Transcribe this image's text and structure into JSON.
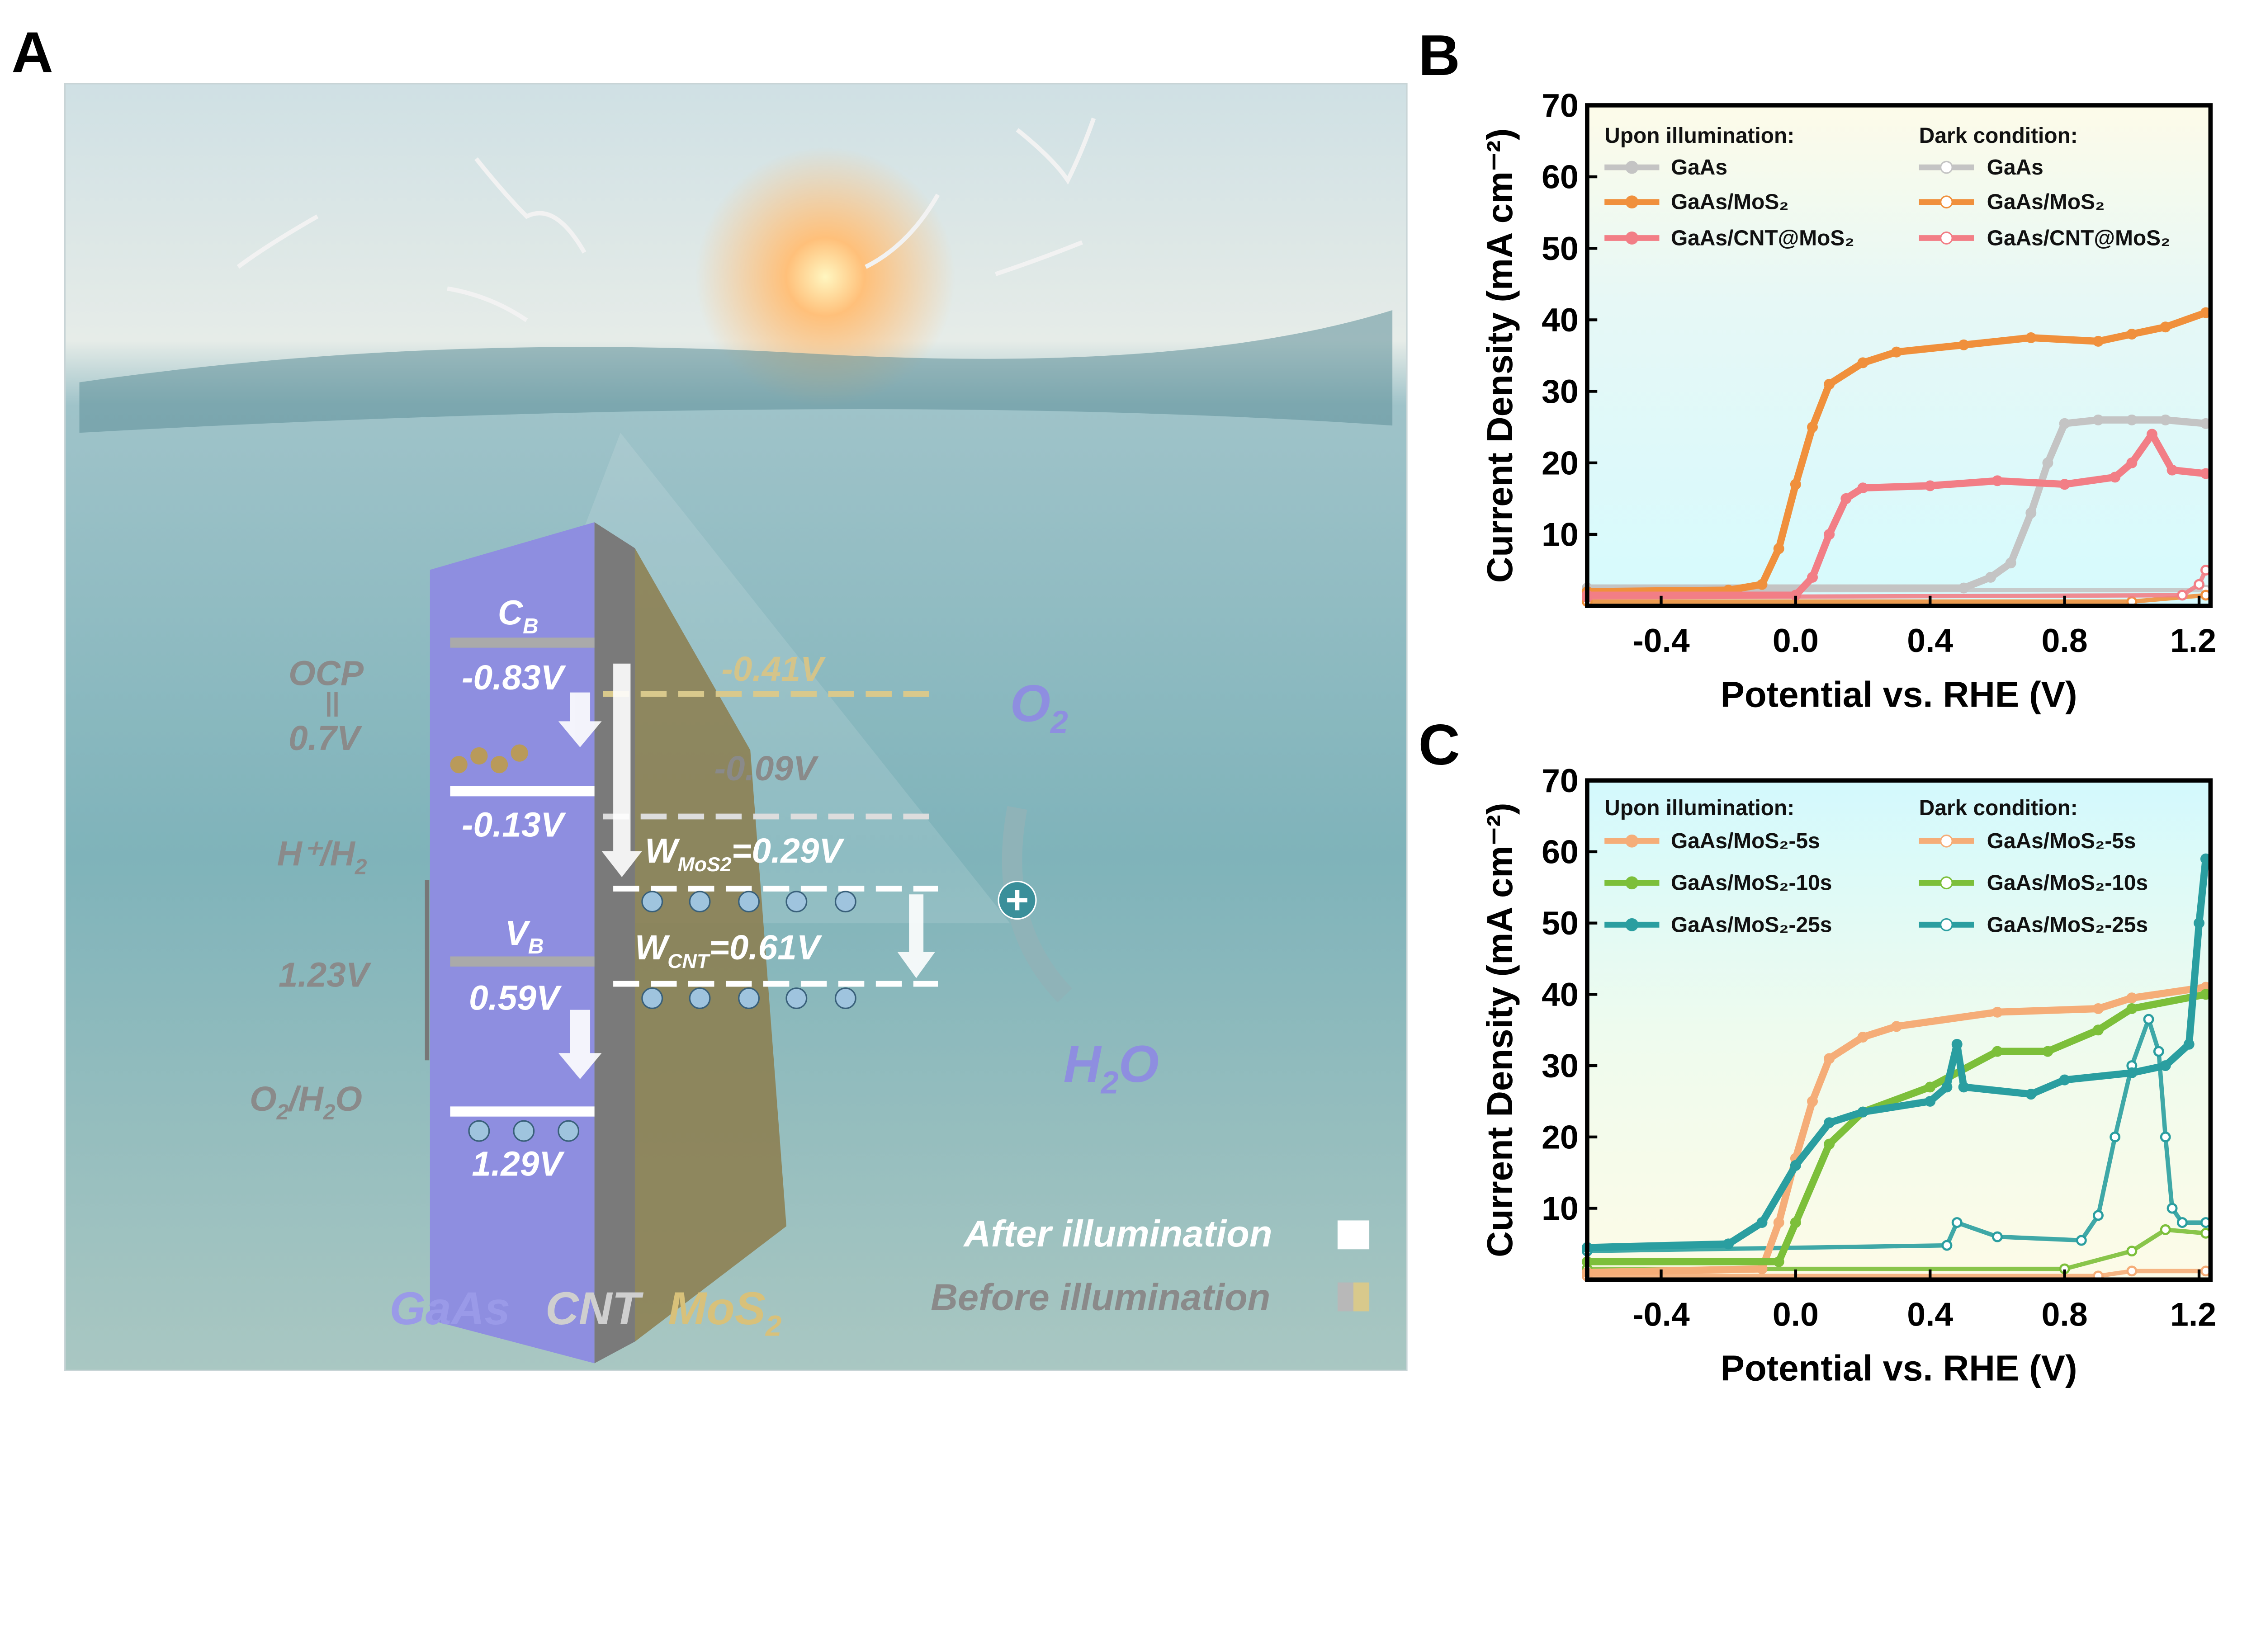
{
  "panel_labels": {
    "a": "A",
    "b": "B",
    "c": "C"
  },
  "panel_a": {
    "cb": {
      "main": "C",
      "sub": "B"
    },
    "vb": {
      "main": "V",
      "sub": "B"
    },
    "cb_after": "-0.83V",
    "cb_before": "-0.13V",
    "vb_before": "0.59V",
    "vb_after": "1.29V",
    "ocp": "OCP",
    "ocp_eq": "||",
    "ocp_value": "0.7V",
    "h_couple": {
      "main": "H⁺/H",
      "sub": "2"
    },
    "gap": "1.23V",
    "o_couple": {
      "pre": "O",
      "sub": "2",
      "post": "/H",
      "sub2": "2",
      "end": "O"
    },
    "mos2_level": "-0.41V",
    "cnt_level": "-0.09V",
    "w_mos2": {
      "main": "W",
      "sub": "MoS2",
      "post": "=0.29V"
    },
    "w_cnt": {
      "main": "W",
      "sub": "CNT",
      "post": "=0.61V"
    },
    "o2": {
      "main": "O",
      "sub": "2"
    },
    "h2o": {
      "main": "H",
      "sub": "2",
      "post": "O"
    },
    "legend_after": "After illumination",
    "legend_before": "Before illumination",
    "material_gaas": "GaAs",
    "material_cnt": "CNT",
    "material_mos2": {
      "main": "MoS",
      "sub": "2"
    },
    "colors": {
      "gaas": "#8e8ee0",
      "cnt": "#8a8a8a",
      "mos2": "#c9b46a",
      "after": "#ffffff",
      "before": "#c8bc8a"
    }
  },
  "chart_data": [
    {
      "panel": "B",
      "type": "line",
      "xlabel": "Potential vs. RHE (V)",
      "ylabel": "Current Density (mA cm⁻²)",
      "xlim": [
        -0.62,
        1.234
      ],
      "ylim": [
        0,
        70
      ],
      "xticks": [
        "-0.4",
        "0.0",
        "0.4",
        "0.8",
        "1.2"
      ],
      "yticks": [
        "10",
        "20",
        "30",
        "40",
        "50",
        "60",
        "70"
      ],
      "grid": false,
      "legend_titles": [
        "Upon illumination:",
        "Dark condition:"
      ],
      "series": [
        {
          "name": "GaAs",
          "group": "Upon illumination",
          "color": "#c4c4c4",
          "points": [
            [
              -0.62,
              2.5
            ],
            [
              0.5,
              2.5
            ],
            [
              0.58,
              4
            ],
            [
              0.64,
              6
            ],
            [
              0.7,
              13
            ],
            [
              0.75,
              20
            ],
            [
              0.8,
              25.5
            ],
            [
              0.9,
              26
            ],
            [
              1.0,
              26
            ],
            [
              1.1,
              26
            ],
            [
              1.22,
              25.5
            ]
          ]
        },
        {
          "name": "GaAs/MoS₂",
          "group": "Upon illumination",
          "color": "#f0903c",
          "points": [
            [
              -0.62,
              2
            ],
            [
              -0.2,
              2.2
            ],
            [
              -0.1,
              3
            ],
            [
              -0.05,
              8
            ],
            [
              0.0,
              17
            ],
            [
              0.05,
              25
            ],
            [
              0.1,
              31
            ],
            [
              0.2,
              34
            ],
            [
              0.3,
              35.5
            ],
            [
              0.5,
              36.5
            ],
            [
              0.7,
              37.5
            ],
            [
              0.9,
              37
            ],
            [
              1.0,
              38
            ],
            [
              1.1,
              39
            ],
            [
              1.22,
              41
            ]
          ]
        },
        {
          "name": "GaAs/CNT@MoS₂",
          "group": "Upon illumination",
          "color": "#f27e86",
          "points": [
            [
              -0.62,
              1.5
            ],
            [
              0.0,
              1.5
            ],
            [
              0.05,
              4
            ],
            [
              0.1,
              10
            ],
            [
              0.15,
              15
            ],
            [
              0.2,
              16.5
            ],
            [
              0.4,
              16.8
            ],
            [
              0.6,
              17.5
            ],
            [
              0.8,
              17
            ],
            [
              0.95,
              18
            ],
            [
              1.0,
              20
            ],
            [
              1.06,
              24
            ],
            [
              1.12,
              19
            ],
            [
              1.22,
              18.5
            ]
          ]
        },
        {
          "name": "GaAs",
          "group": "Dark condition",
          "color": "#c4c4c4",
          "points": [
            [
              -0.62,
              2.2
            ],
            [
              1.22,
              2.2
            ]
          ]
        },
        {
          "name": "GaAs/MoS₂",
          "group": "Dark condition",
          "color": "#f0903c",
          "points": [
            [
              -0.62,
              0.6
            ],
            [
              1.0,
              0.6
            ],
            [
              1.22,
              1.5
            ]
          ]
        },
        {
          "name": "GaAs/CNT@MoS₂",
          "group": "Dark condition",
          "color": "#f27e86",
          "points": [
            [
              -0.62,
              1.2
            ],
            [
              1.15,
              1.5
            ],
            [
              1.2,
              3
            ],
            [
              1.22,
              5
            ]
          ]
        }
      ]
    },
    {
      "panel": "C",
      "type": "line",
      "xlabel": "Potential vs. RHE (V)",
      "ylabel": "Current Density (mA cm⁻²)",
      "xlim": [
        -0.62,
        1.234
      ],
      "ylim": [
        0,
        70
      ],
      "xticks": [
        "-0.4",
        "0.0",
        "0.4",
        "0.8",
        "1.2"
      ],
      "yticks": [
        "10",
        "20",
        "30",
        "40",
        "50",
        "60",
        "70"
      ],
      "grid": false,
      "legend_titles": [
        "Upon illumination:",
        "Dark condition:"
      ],
      "series": [
        {
          "name": "GaAs/MoS₂-5s",
          "group": "Upon illumination",
          "color": "#f5ad78",
          "points": [
            [
              -0.62,
              1
            ],
            [
              -0.1,
              1.5
            ],
            [
              -0.05,
              8
            ],
            [
              0.0,
              17
            ],
            [
              0.05,
              25
            ],
            [
              0.1,
              31
            ],
            [
              0.2,
              34
            ],
            [
              0.3,
              35.5
            ],
            [
              0.6,
              37.5
            ],
            [
              0.9,
              38
            ],
            [
              1.0,
              39.5
            ],
            [
              1.22,
              41
            ]
          ]
        },
        {
          "name": "GaAs/MoS₂-10s",
          "group": "Upon illumination",
          "color": "#7cbf3a",
          "points": [
            [
              -0.62,
              2.5
            ],
            [
              -0.05,
              2.5
            ],
            [
              0.0,
              8
            ],
            [
              0.1,
              19
            ],
            [
              0.2,
              23.5
            ],
            [
              0.4,
              27
            ],
            [
              0.6,
              32
            ],
            [
              0.75,
              32
            ],
            [
              0.9,
              35
            ],
            [
              1.0,
              38
            ],
            [
              1.22,
              40
            ]
          ]
        },
        {
          "name": "GaAs/MoS₂-25s",
          "group": "Upon illumination",
          "color": "#2a9ea0",
          "points": [
            [
              -0.62,
              4.5
            ],
            [
              -0.2,
              5
            ],
            [
              -0.1,
              8
            ],
            [
              0.0,
              16
            ],
            [
              0.1,
              22
            ],
            [
              0.2,
              23.5
            ],
            [
              0.4,
              25
            ],
            [
              0.45,
              27
            ],
            [
              0.48,
              33
            ],
            [
              0.5,
              27
            ],
            [
              0.7,
              26
            ],
            [
              0.8,
              28
            ],
            [
              1.0,
              29
            ],
            [
              1.1,
              30
            ],
            [
              1.17,
              33
            ],
            [
              1.2,
              50
            ],
            [
              1.22,
              59
            ]
          ]
        },
        {
          "name": "GaAs/MoS₂-5s",
          "group": "Dark condition",
          "color": "#f5ad78",
          "points": [
            [
              -0.62,
              0.5
            ],
            [
              0.9,
              0.5
            ],
            [
              1.0,
              1.2
            ],
            [
              1.22,
              1.2
            ]
          ]
        },
        {
          "name": "GaAs/MoS₂-10s",
          "group": "Dark condition",
          "color": "#7cbf3a",
          "points": [
            [
              -0.62,
              1.5
            ],
            [
              0.8,
              1.5
            ],
            [
              1.0,
              4
            ],
            [
              1.1,
              7
            ],
            [
              1.22,
              6.5
            ]
          ]
        },
        {
          "name": "GaAs/MoS₂-25s",
          "group": "Dark condition",
          "color": "#2a9ea0",
          "points": [
            [
              -0.62,
              4
            ],
            [
              0.45,
              4.8
            ],
            [
              0.48,
              8
            ],
            [
              0.6,
              6
            ],
            [
              0.85,
              5.5
            ],
            [
              0.9,
              9
            ],
            [
              0.95,
              20
            ],
            [
              1.0,
              30
            ],
            [
              1.05,
              36.5
            ],
            [
              1.08,
              32
            ],
            [
              1.1,
              20
            ],
            [
              1.12,
              10
            ],
            [
              1.15,
              8
            ],
            [
              1.22,
              8
            ]
          ]
        }
      ]
    }
  ]
}
